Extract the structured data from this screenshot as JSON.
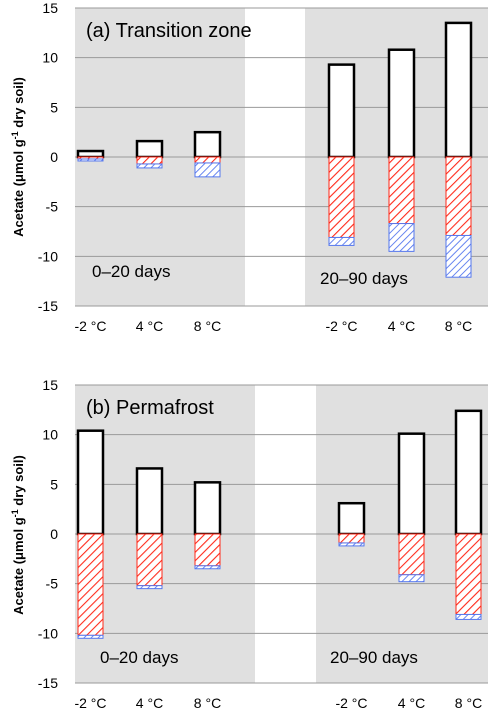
{
  "chart_data": [
    {
      "type": "bar",
      "title": "(a) Transition zone",
      "ylabel": "Acetate (μmol g⁻¹ dry soil)",
      "ylabel_main": "Acetate (μmol g",
      "ylabel_sup": "-1",
      "ylabel_tail": " dry soil)",
      "ylim": [
        -15,
        15
      ],
      "yticks": [
        "-15",
        "-10",
        "-5",
        "0",
        "5",
        "10",
        "15"
      ],
      "grid": true,
      "periods": [
        {
          "label": "0–20 days",
          "categories": [
            "-2 °C",
            "4 °C",
            "8 °C"
          ],
          "production": [
            0.6,
            1.6,
            2.5
          ],
          "consumption_red": [
            -0.2,
            -0.7,
            -0.6
          ],
          "consumption_blue": [
            -0.2,
            -0.4,
            -1.4
          ]
        },
        {
          "label": "20–90 days",
          "categories": [
            "-2 °C",
            "4 °C",
            "8 °C"
          ],
          "production": [
            9.3,
            10.8,
            13.5
          ],
          "consumption_red": [
            -8.1,
            -6.7,
            -7.9
          ],
          "consumption_blue": [
            -0.8,
            -2.8,
            -4.2
          ]
        }
      ],
      "colors": {
        "production": "#ffffff",
        "red": "#ff2a1a",
        "blue": "#5577ee",
        "panel": "#e0e0e0"
      }
    },
    {
      "type": "bar",
      "title": "(b) Permafrost",
      "ylabel": "Acetate (μmol g⁻¹ dry soil)",
      "ylabel_main": "Acetate (μmol g",
      "ylabel_sup": "-1",
      "ylabel_tail": " dry soil)",
      "ylim": [
        -15,
        15
      ],
      "yticks": [
        "-15",
        "-10",
        "-5",
        "0",
        "5",
        "10",
        "15"
      ],
      "grid": true,
      "periods": [
        {
          "label": "0–20 days",
          "categories": [
            "-2 °C",
            "4 °C",
            "8 °C"
          ],
          "production": [
            10.4,
            6.6,
            5.2
          ],
          "consumption_red": [
            -10.2,
            -5.2,
            -3.2
          ],
          "consumption_blue": [
            -0.3,
            -0.3,
            -0.3
          ]
        },
        {
          "label": "20–90 days",
          "categories": [
            "-2 °C",
            "4 °C",
            "8 °C"
          ],
          "production": [
            3.1,
            10.1,
            12.4
          ],
          "consumption_red": [
            -0.9,
            -4.1,
            -8.1
          ],
          "consumption_blue": [
            -0.3,
            -0.7,
            -0.5
          ]
        }
      ],
      "colors": {
        "production": "#ffffff",
        "red": "#ff2a1a",
        "blue": "#5577ee",
        "panel": "#e0e0e0"
      }
    }
  ]
}
